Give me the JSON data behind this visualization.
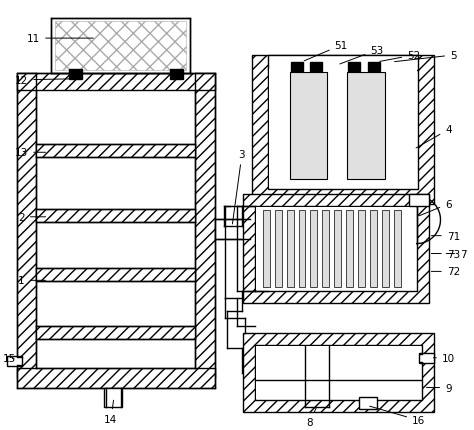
{
  "bg_color": "#ffffff",
  "lc": "#000000",
  "hfc": "#f0f0f0",
  "lw": 1.0,
  "lw_thick": 1.5,
  "label_fs": 7.5
}
